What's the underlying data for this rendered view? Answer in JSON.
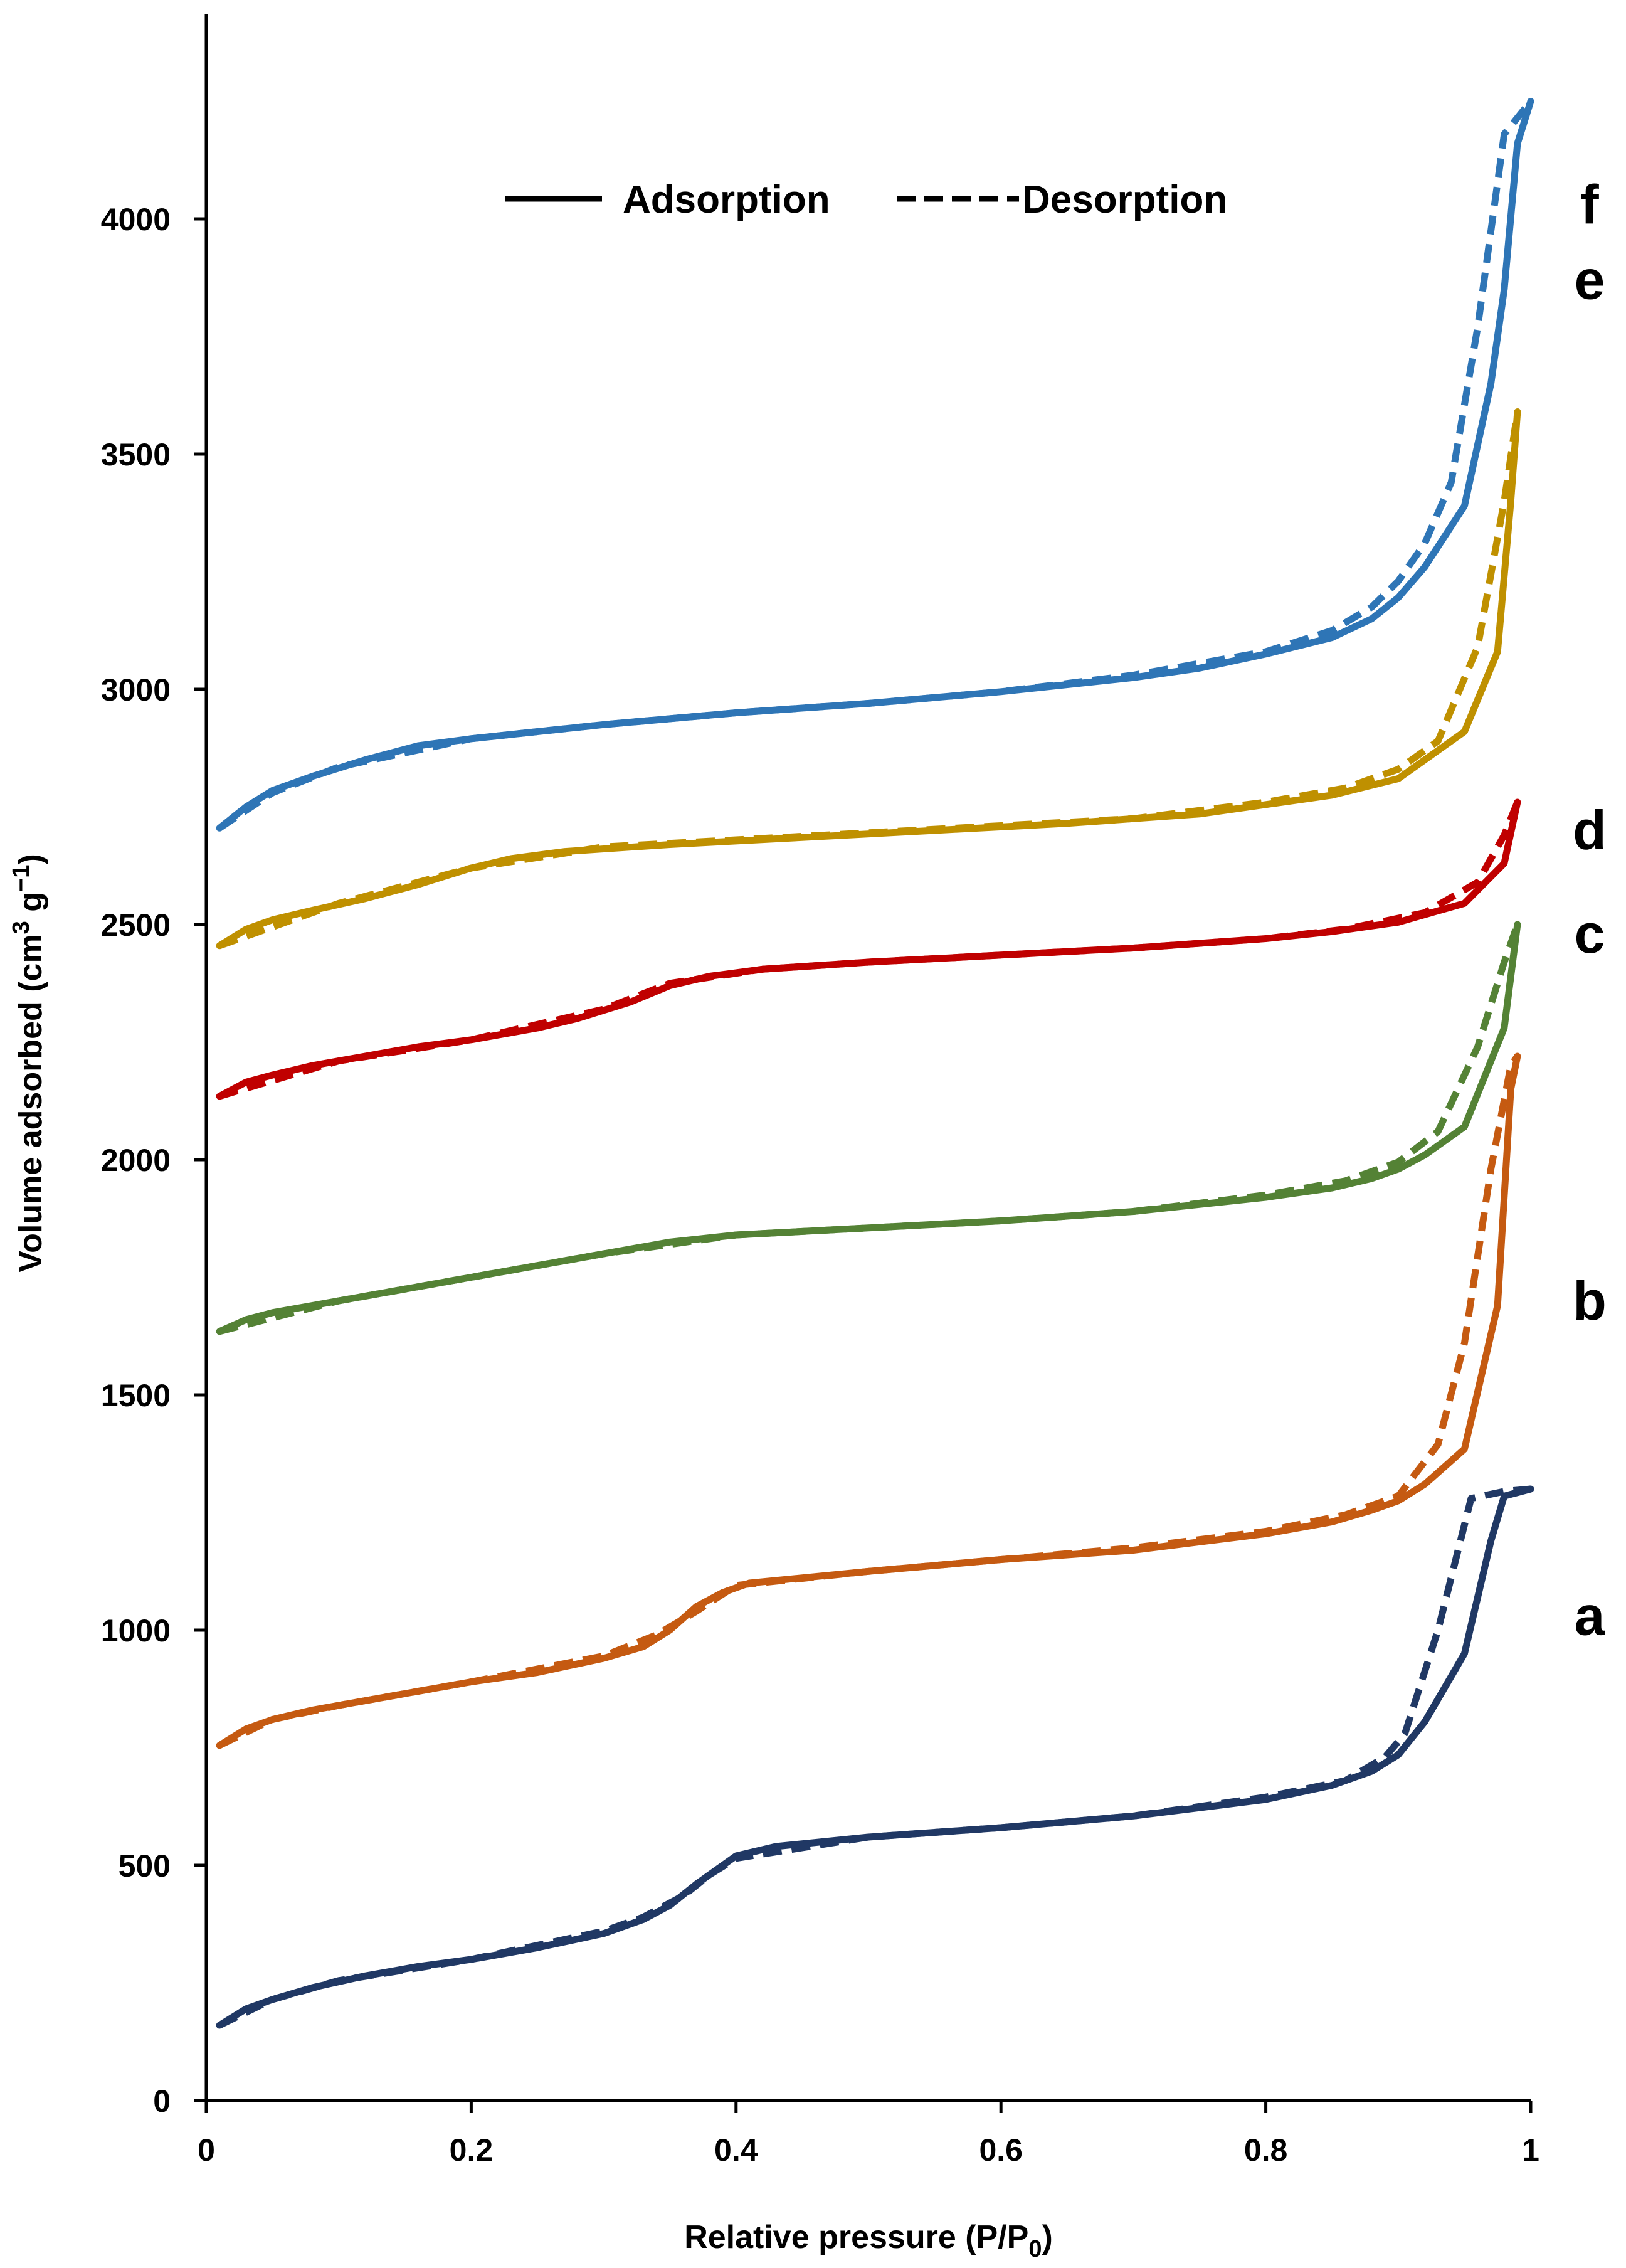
{
  "chart_data": {
    "type": "line",
    "title": "",
    "xlabel": "Relative pressure (P/P0)",
    "xlabel_main": "Relative pressure (P/P",
    "xlabel_sub": "0",
    "xlabel_tail": ")",
    "ylabel": "Volume adsorbed (cm3 g−1)",
    "ylabel_main": "Volume adsorbed (cm",
    "ylabel_sup1": "3",
    "ylabel_mid": " g",
    "ylabel_sup2": "−1",
    "ylabel_tail": ")",
    "xlim": [
      0,
      1
    ],
    "ylim": [
      0,
      4300
    ],
    "x_ticks": [
      0,
      0.2,
      0.4,
      0.6,
      0.8,
      1
    ],
    "x_tick_labels": [
      "0",
      "0.2",
      "0.4",
      "0.6",
      "0.8",
      "1"
    ],
    "y_ticks": [
      0,
      500,
      1000,
      1500,
      2000,
      2500,
      3000,
      3500,
      4000
    ],
    "y_tick_labels": [
      "0",
      "500",
      "1000",
      "1500",
      "2000",
      "2500",
      "3000",
      "3500",
      "4000"
    ],
    "grid": false,
    "legend": {
      "position": "top-center",
      "entries": [
        {
          "label": "Adsorption",
          "style": "solid"
        },
        {
          "label": "Desorption",
          "style": "dashed"
        }
      ]
    },
    "series": [
      {
        "name": "a",
        "label": "a",
        "color": "#203864",
        "adsorption": [
          [
            0.01,
            160
          ],
          [
            0.03,
            195
          ],
          [
            0.05,
            215
          ],
          [
            0.08,
            240
          ],
          [
            0.12,
            265
          ],
          [
            0.16,
            285
          ],
          [
            0.2,
            300
          ],
          [
            0.25,
            325
          ],
          [
            0.3,
            355
          ],
          [
            0.33,
            385
          ],
          [
            0.35,
            415
          ],
          [
            0.37,
            460
          ],
          [
            0.39,
            500
          ],
          [
            0.4,
            520
          ],
          [
            0.43,
            540
          ],
          [
            0.5,
            560
          ],
          [
            0.6,
            580
          ],
          [
            0.7,
            605
          ],
          [
            0.8,
            640
          ],
          [
            0.85,
            670
          ],
          [
            0.88,
            700
          ],
          [
            0.9,
            735
          ],
          [
            0.92,
            805
          ],
          [
            0.95,
            950
          ],
          [
            0.97,
            1190
          ],
          [
            0.98,
            1285
          ],
          [
            1.0,
            1300
          ]
        ],
        "desorption": [
          [
            0.01,
            160
          ],
          [
            0.05,
            215
          ],
          [
            0.1,
            255
          ],
          [
            0.2,
            300
          ],
          [
            0.3,
            360
          ],
          [
            0.33,
            390
          ],
          [
            0.36,
            435
          ],
          [
            0.38,
            480
          ],
          [
            0.4,
            515
          ],
          [
            0.5,
            560
          ],
          [
            0.6,
            580
          ],
          [
            0.7,
            605
          ],
          [
            0.8,
            645
          ],
          [
            0.86,
            680
          ],
          [
            0.89,
            730
          ],
          [
            0.905,
            780
          ],
          [
            0.93,
            1000
          ],
          [
            0.955,
            1280
          ],
          [
            0.98,
            1295
          ],
          [
            1.0,
            1300
          ]
        ]
      },
      {
        "name": "b",
        "label": "b",
        "color": "#C55A11",
        "adsorption": [
          [
            0.01,
            755
          ],
          [
            0.03,
            790
          ],
          [
            0.05,
            810
          ],
          [
            0.08,
            830
          ],
          [
            0.12,
            850
          ],
          [
            0.16,
            870
          ],
          [
            0.2,
            890
          ],
          [
            0.25,
            910
          ],
          [
            0.3,
            940
          ],
          [
            0.33,
            965
          ],
          [
            0.35,
            1000
          ],
          [
            0.37,
            1050
          ],
          [
            0.39,
            1080
          ],
          [
            0.41,
            1100
          ],
          [
            0.5,
            1125
          ],
          [
            0.6,
            1150
          ],
          [
            0.7,
            1170
          ],
          [
            0.8,
            1205
          ],
          [
            0.85,
            1230
          ],
          [
            0.88,
            1255
          ],
          [
            0.9,
            1275
          ],
          [
            0.92,
            1310
          ],
          [
            0.95,
            1385
          ],
          [
            0.975,
            1690
          ],
          [
            0.985,
            2150
          ],
          [
            0.99,
            2220
          ]
        ],
        "desorption": [
          [
            0.01,
            755
          ],
          [
            0.05,
            810
          ],
          [
            0.1,
            840
          ],
          [
            0.2,
            890
          ],
          [
            0.3,
            945
          ],
          [
            0.34,
            990
          ],
          [
            0.37,
            1040
          ],
          [
            0.4,
            1095
          ],
          [
            0.5,
            1125
          ],
          [
            0.6,
            1150
          ],
          [
            0.7,
            1175
          ],
          [
            0.8,
            1210
          ],
          [
            0.86,
            1245
          ],
          [
            0.9,
            1285
          ],
          [
            0.93,
            1395
          ],
          [
            0.95,
            1610
          ],
          [
            0.97,
            1980
          ],
          [
            0.985,
            2200
          ],
          [
            0.99,
            2220
          ]
        ]
      },
      {
        "name": "c",
        "label": "c",
        "color": "#548235",
        "adsorption": [
          [
            0.01,
            1635
          ],
          [
            0.03,
            1660
          ],
          [
            0.05,
            1675
          ],
          [
            0.08,
            1690
          ],
          [
            0.12,
            1710
          ],
          [
            0.16,
            1730
          ],
          [
            0.2,
            1750
          ],
          [
            0.25,
            1775
          ],
          [
            0.3,
            1800
          ],
          [
            0.35,
            1825
          ],
          [
            0.4,
            1840
          ],
          [
            0.5,
            1855
          ],
          [
            0.6,
            1870
          ],
          [
            0.7,
            1890
          ],
          [
            0.8,
            1920
          ],
          [
            0.85,
            1940
          ],
          [
            0.88,
            1960
          ],
          [
            0.9,
            1980
          ],
          [
            0.92,
            2010
          ],
          [
            0.95,
            2070
          ],
          [
            0.98,
            2280
          ],
          [
            0.99,
            2500
          ]
        ],
        "desorption": [
          [
            0.01,
            1635
          ],
          [
            0.1,
            1700
          ],
          [
            0.2,
            1750
          ],
          [
            0.3,
            1800
          ],
          [
            0.4,
            1840
          ],
          [
            0.5,
            1855
          ],
          [
            0.6,
            1870
          ],
          [
            0.7,
            1890
          ],
          [
            0.8,
            1925
          ],
          [
            0.86,
            1955
          ],
          [
            0.9,
            1995
          ],
          [
            0.93,
            2060
          ],
          [
            0.96,
            2240
          ],
          [
            0.98,
            2420
          ],
          [
            0.99,
            2500
          ]
        ]
      },
      {
        "name": "d",
        "label": "d",
        "color": "#C00000",
        "adsorption": [
          [
            0.01,
            2135
          ],
          [
            0.03,
            2165
          ],
          [
            0.05,
            2180
          ],
          [
            0.08,
            2200
          ],
          [
            0.12,
            2220
          ],
          [
            0.16,
            2240
          ],
          [
            0.2,
            2255
          ],
          [
            0.25,
            2280
          ],
          [
            0.28,
            2300
          ],
          [
            0.32,
            2335
          ],
          [
            0.35,
            2370
          ],
          [
            0.38,
            2390
          ],
          [
            0.42,
            2405
          ],
          [
            0.5,
            2420
          ],
          [
            0.6,
            2435
          ],
          [
            0.7,
            2450
          ],
          [
            0.8,
            2470
          ],
          [
            0.85,
            2485
          ],
          [
            0.9,
            2505
          ],
          [
            0.95,
            2545
          ],
          [
            0.98,
            2630
          ],
          [
            0.99,
            2760
          ]
        ],
        "desorption": [
          [
            0.01,
            2135
          ],
          [
            0.1,
            2210
          ],
          [
            0.2,
            2255
          ],
          [
            0.3,
            2320
          ],
          [
            0.35,
            2375
          ],
          [
            0.42,
            2405
          ],
          [
            0.5,
            2420
          ],
          [
            0.6,
            2435
          ],
          [
            0.7,
            2450
          ],
          [
            0.8,
            2470
          ],
          [
            0.86,
            2490
          ],
          [
            0.92,
            2525
          ],
          [
            0.96,
            2590
          ],
          [
            0.98,
            2690
          ],
          [
            0.99,
            2760
          ]
        ]
      },
      {
        "name": "e",
        "label": "e",
        "color": "#BF9000",
        "adsorption": [
          [
            0.01,
            2455
          ],
          [
            0.03,
            2490
          ],
          [
            0.05,
            2510
          ],
          [
            0.08,
            2530
          ],
          [
            0.12,
            2555
          ],
          [
            0.16,
            2585
          ],
          [
            0.2,
            2620
          ],
          [
            0.23,
            2640
          ],
          [
            0.27,
            2655
          ],
          [
            0.35,
            2670
          ],
          [
            0.45,
            2685
          ],
          [
            0.55,
            2700
          ],
          [
            0.65,
            2715
          ],
          [
            0.75,
            2735
          ],
          [
            0.8,
            2755
          ],
          [
            0.85,
            2775
          ],
          [
            0.9,
            2810
          ],
          [
            0.92,
            2850
          ],
          [
            0.95,
            2910
          ],
          [
            0.975,
            3080
          ],
          [
            0.985,
            3400
          ],
          [
            0.99,
            3590
          ]
        ],
        "desorption": [
          [
            0.01,
            2455
          ],
          [
            0.1,
            2545
          ],
          [
            0.2,
            2620
          ],
          [
            0.3,
            2665
          ],
          [
            0.4,
            2680
          ],
          [
            0.5,
            2695
          ],
          [
            0.6,
            2710
          ],
          [
            0.7,
            2725
          ],
          [
            0.8,
            2760
          ],
          [
            0.86,
            2790
          ],
          [
            0.9,
            2830
          ],
          [
            0.93,
            2890
          ],
          [
            0.96,
            3090
          ],
          [
            0.98,
            3400
          ],
          [
            0.99,
            3590
          ]
        ]
      },
      {
        "name": "f",
        "label": "f",
        "color": "#2E75B6",
        "adsorption": [
          [
            0.01,
            2705
          ],
          [
            0.03,
            2750
          ],
          [
            0.05,
            2785
          ],
          [
            0.08,
            2815
          ],
          [
            0.12,
            2850
          ],
          [
            0.16,
            2880
          ],
          [
            0.2,
            2895
          ],
          [
            0.25,
            2910
          ],
          [
            0.3,
            2925
          ],
          [
            0.4,
            2950
          ],
          [
            0.5,
            2970
          ],
          [
            0.6,
            2995
          ],
          [
            0.7,
            3025
          ],
          [
            0.75,
            3045
          ],
          [
            0.8,
            3075
          ],
          [
            0.85,
            3110
          ],
          [
            0.88,
            3150
          ],
          [
            0.9,
            3195
          ],
          [
            0.92,
            3260
          ],
          [
            0.95,
            3390
          ],
          [
            0.97,
            3650
          ],
          [
            0.98,
            3850
          ],
          [
            0.99,
            4160
          ],
          [
            1.0,
            4250
          ]
        ],
        "desorption": [
          [
            0.01,
            2705
          ],
          [
            0.05,
            2780
          ],
          [
            0.1,
            2835
          ],
          [
            0.2,
            2895
          ],
          [
            0.3,
            2925
          ],
          [
            0.4,
            2950
          ],
          [
            0.5,
            2970
          ],
          [
            0.6,
            2995
          ],
          [
            0.7,
            3030
          ],
          [
            0.8,
            3080
          ],
          [
            0.85,
            3125
          ],
          [
            0.88,
            3175
          ],
          [
            0.9,
            3230
          ],
          [
            0.92,
            3310
          ],
          [
            0.94,
            3440
          ],
          [
            0.96,
            3770
          ],
          [
            0.98,
            4180
          ],
          [
            1.0,
            4250
          ]
        ]
      }
    ]
  }
}
